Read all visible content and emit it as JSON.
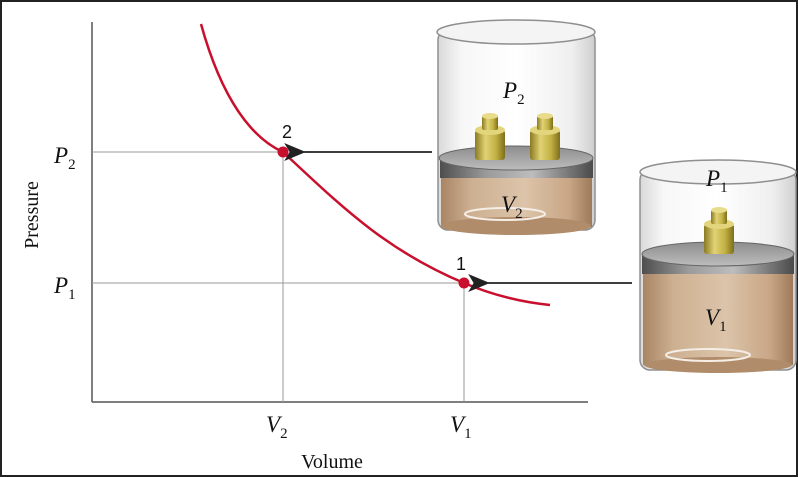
{
  "axes": {
    "y_label": "Pressure",
    "x_label": "Volume"
  },
  "ticks": {
    "p2": {
      "main": "P",
      "sub": "2"
    },
    "p1": {
      "main": "P",
      "sub": "1"
    },
    "v2": {
      "main": "V",
      "sub": "2"
    },
    "v1": {
      "main": "V",
      "sub": "1"
    }
  },
  "points": {
    "state2": {
      "label": "2"
    },
    "state1": {
      "label": "1"
    }
  },
  "containers": {
    "compressed": {
      "pressure": {
        "main": "P",
        "sub": "2"
      },
      "volume": {
        "main": "V",
        "sub": "2"
      },
      "weights": 2
    },
    "expanded": {
      "pressure": {
        "main": "P",
        "sub": "1"
      },
      "volume": {
        "main": "V",
        "sub": "1"
      },
      "weights": 1
    }
  },
  "colors": {
    "curve": "#c8102e",
    "point": "#c8102e",
    "axis": "#555555",
    "gas": "#c9a98a",
    "piston": "#6f6f6f",
    "weight": "#b8a63a"
  }
}
